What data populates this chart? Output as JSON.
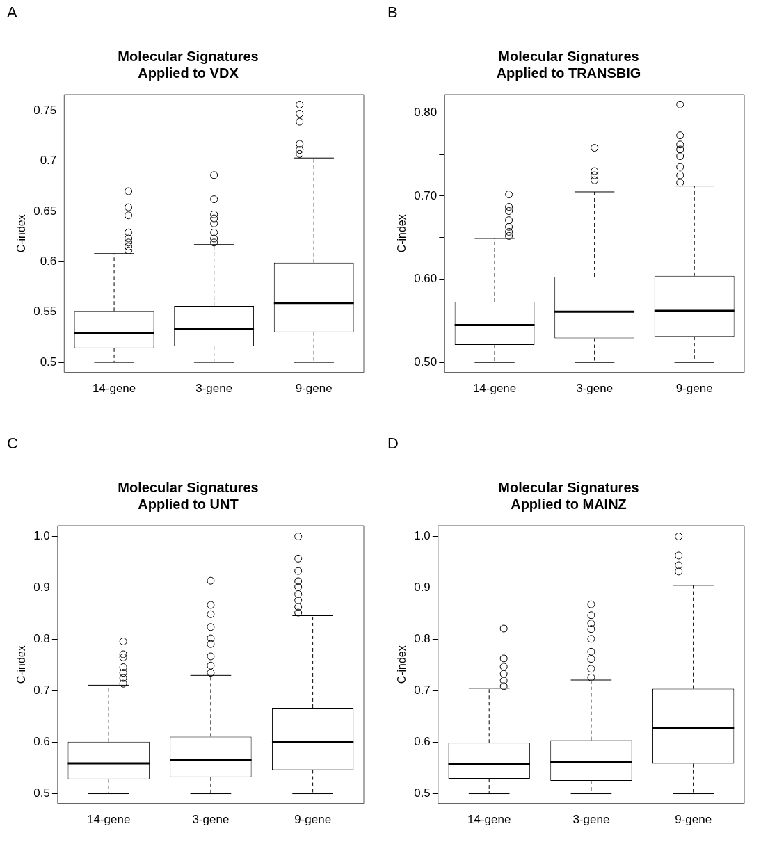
{
  "chart_data": [
    {
      "type": "box",
      "title": "Molecular Signatures",
      "subtitle": "Applied to VDX",
      "ylabel": "C-index",
      "annotations": [
        "A"
      ],
      "categories": [
        "14-gene",
        "3-gene",
        "9-gene"
      ],
      "marker": "circle",
      "grid": false,
      "ylim": [
        0.49,
        0.766
      ],
      "yticks": [
        0.5,
        0.55,
        0.6,
        0.65,
        0.7,
        0.75
      ],
      "boxes": [
        {
          "low": 0.5,
          "q1": 0.514,
          "median": 0.529,
          "q3": 0.551,
          "high": 0.608,
          "outliers": [
            0.611,
            0.615,
            0.619,
            0.623,
            0.629,
            0.646,
            0.654,
            0.67
          ]
        },
        {
          "low": 0.5,
          "q1": 0.516,
          "median": 0.533,
          "q3": 0.556,
          "high": 0.617,
          "outliers": [
            0.619,
            0.623,
            0.629,
            0.638,
            0.643,
            0.647,
            0.662,
            0.686
          ]
        },
        {
          "low": 0.5,
          "q1": 0.53,
          "median": 0.559,
          "q3": 0.599,
          "high": 0.703,
          "outliers": [
            0.707,
            0.711,
            0.717,
            0.739,
            0.747,
            0.756
          ]
        }
      ]
    },
    {
      "type": "box",
      "title": "Molecular Signatures",
      "subtitle": "Applied to TRANSBIG",
      "ylabel": "C-index",
      "annotations": [
        "B"
      ],
      "categories": [
        "14-gene",
        "3-gene",
        "9-gene"
      ],
      "marker": "circle",
      "grid": false,
      "ylim": [
        0.488,
        0.822
      ],
      "yticks": [
        {
          "value": 0.5,
          "label": "0.50"
        },
        {
          "value": 0.55,
          "label": null
        },
        {
          "value": 0.6,
          "label": "0.60"
        },
        {
          "value": 0.65,
          "label": null
        },
        {
          "value": 0.7,
          "label": "0.70"
        },
        {
          "value": 0.75,
          "label": null
        },
        {
          "value": 0.8,
          "label": "0.80"
        }
      ],
      "boxes": [
        {
          "low": 0.5,
          "q1": 0.521,
          "median": 0.545,
          "q3": 0.573,
          "high": 0.649,
          "outliers": [
            0.652,
            0.657,
            0.663,
            0.671,
            0.682,
            0.687,
            0.702
          ]
        },
        {
          "low": 0.5,
          "q1": 0.529,
          "median": 0.561,
          "q3": 0.603,
          "high": 0.705,
          "outliers": [
            0.719,
            0.725,
            0.73,
            0.758
          ]
        },
        {
          "low": 0.5,
          "q1": 0.531,
          "median": 0.562,
          "q3": 0.604,
          "high": 0.712,
          "outliers": [
            0.716,
            0.725,
            0.735,
            0.748,
            0.756,
            0.762,
            0.773,
            0.81
          ]
        }
      ]
    },
    {
      "type": "box",
      "title": "Molecular Signatures",
      "subtitle": "Applied to UNT",
      "ylabel": "C-index",
      "annotations": [
        "C"
      ],
      "categories": [
        "14-gene",
        "3-gene",
        "9-gene"
      ],
      "marker": "circle",
      "grid": false,
      "ylim": [
        0.481,
        1.021
      ],
      "yticks": [
        {
          "value": 0.5,
          "label": "0.5"
        },
        {
          "value": 0.6,
          "label": "0.6"
        },
        {
          "value": 0.7,
          "label": "0.7"
        },
        {
          "value": 0.8,
          "label": "0.8"
        },
        {
          "value": 0.9,
          "label": "0.9"
        },
        {
          "value": 1,
          "label": "1.0"
        }
      ],
      "boxes": [
        {
          "low": 0.5,
          "q1": 0.528,
          "median": 0.559,
          "q3": 0.601,
          "high": 0.711,
          "outliers": [
            0.714,
            0.725,
            0.735,
            0.746,
            0.765,
            0.771,
            0.796
          ]
        },
        {
          "low": 0.5,
          "q1": 0.532,
          "median": 0.566,
          "q3": 0.611,
          "high": 0.73,
          "outliers": [
            0.735,
            0.749,
            0.767,
            0.791,
            0.802,
            0.824,
            0.849,
            0.867,
            0.914
          ]
        },
        {
          "low": 0.5,
          "q1": 0.546,
          "median": 0.6,
          "q3": 0.667,
          "high": 0.846,
          "outliers": [
            0.852,
            0.863,
            0.876,
            0.888,
            0.902,
            0.913,
            0.933,
            0.957,
            1.0
          ]
        }
      ]
    },
    {
      "type": "box",
      "title": "Molecular Signatures",
      "subtitle": "Applied to MAINZ",
      "ylabel": "C-index",
      "annotations": [
        "D"
      ],
      "categories": [
        "14-gene",
        "3-gene",
        "9-gene"
      ],
      "marker": "circle",
      "grid": false,
      "ylim": [
        0.481,
        1.021
      ],
      "yticks": [
        {
          "value": 0.5,
          "label": "0.5"
        },
        {
          "value": 0.6,
          "label": "0.6"
        },
        {
          "value": 0.7,
          "label": "0.7"
        },
        {
          "value": 0.8,
          "label": "0.8"
        },
        {
          "value": 0.9,
          "label": "0.9"
        },
        {
          "value": 1,
          "label": "1.0"
        }
      ],
      "boxes": [
        {
          "low": 0.5,
          "q1": 0.529,
          "median": 0.558,
          "q3": 0.599,
          "high": 0.705,
          "outliers": [
            0.709,
            0.72,
            0.733,
            0.747,
            0.763,
            0.821
          ]
        },
        {
          "low": 0.5,
          "q1": 0.525,
          "median": 0.562,
          "q3": 0.604,
          "high": 0.721,
          "outliers": [
            0.726,
            0.743,
            0.762,
            0.776,
            0.801,
            0.82,
            0.831,
            0.847,
            0.868
          ]
        },
        {
          "low": 0.5,
          "q1": 0.558,
          "median": 0.627,
          "q3": 0.704,
          "high": 0.905,
          "outliers": [
            0.932,
            0.944,
            0.963,
            1.0
          ]
        }
      ]
    }
  ]
}
